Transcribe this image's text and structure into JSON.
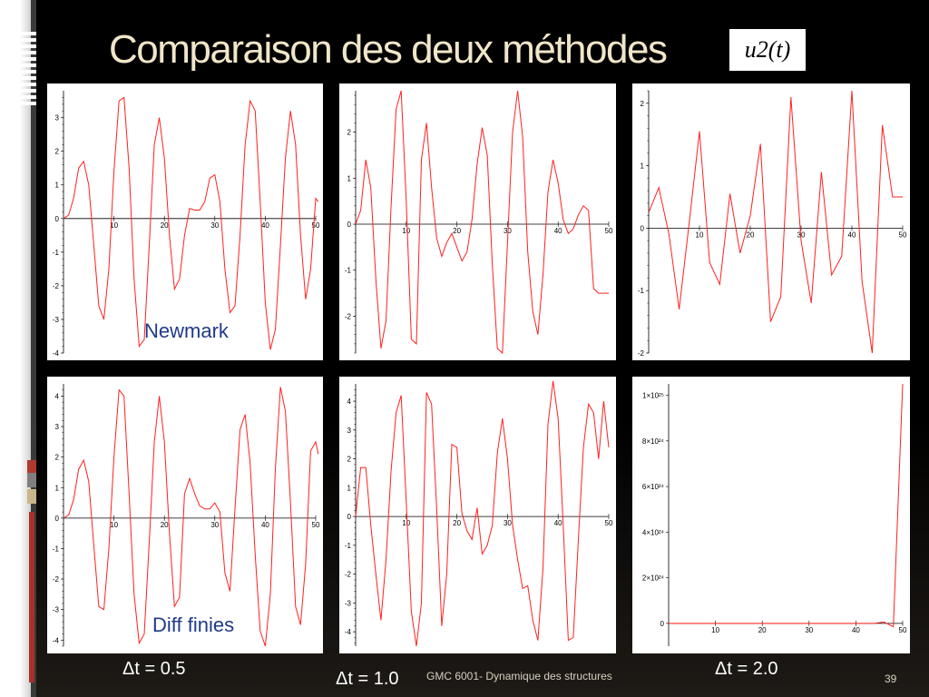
{
  "slide": {
    "title": "Comparaison des  deux méthodes",
    "formula": "u2(t)",
    "footer": "GMC 6001-  Dynamique des structures",
    "page_number": "39",
    "labels": {
      "newmark": "Newmark",
      "diff": "Diff finies",
      "dt05": "Δt = 0.5",
      "dt10": "Δt = 1.0",
      "dt20": "Δt = 2.0"
    },
    "colors": {
      "signal": "#ff2020",
      "title": "#f0e6c8",
      "method_label": "#1f3a8a"
    }
  },
  "chart_data": [
    {
      "type": "line",
      "method": "Newmark",
      "dt": 0.5,
      "xlim": [
        0,
        50
      ],
      "ylim": [
        -4,
        3.8
      ],
      "xticks": [
        10,
        20,
        30,
        40,
        50
      ],
      "yticks": [
        -4,
        -3,
        -2,
        -1,
        0,
        1,
        2,
        3
      ],
      "x": [
        0,
        1,
        2,
        3,
        4,
        5,
        6,
        7,
        8,
        9,
        10,
        11,
        12,
        13,
        14,
        15,
        16,
        17,
        18,
        19,
        20,
        21,
        22,
        23,
        24,
        25,
        26,
        27,
        28,
        29,
        30,
        31,
        32,
        33,
        34,
        35,
        36,
        37,
        38,
        39,
        40,
        41,
        42,
        43,
        44,
        45,
        46,
        47,
        48,
        49,
        50,
        50.5
      ],
      "y": [
        0,
        0.1,
        0.6,
        1.5,
        1.7,
        1.0,
        -0.8,
        -2.6,
        -3.0,
        -1.5,
        1.4,
        3.5,
        3.6,
        1.5,
        -1.8,
        -3.8,
        -3.6,
        -0.8,
        2.2,
        3.0,
        1.8,
        -0.5,
        -2.1,
        -1.8,
        -0.5,
        0.3,
        0.25,
        0.25,
        0.5,
        1.2,
        1.3,
        0.5,
        -1.5,
        -2.8,
        -2.6,
        -0.5,
        2.2,
        3.5,
        3.2,
        0.5,
        -2.5,
        -3.9,
        -3.3,
        -0.8,
        1.8,
        3.2,
        2.2,
        -0.5,
        -2.4,
        -1.5,
        0.6,
        0.5
      ]
    },
    {
      "type": "line",
      "method": "Newmark",
      "dt": 1.0,
      "xlim": [
        0,
        50
      ],
      "ylim": [
        -2.8,
        2.9
      ],
      "xticks": [
        10,
        20,
        30,
        40,
        50
      ],
      "yticks": [
        -2,
        -1,
        0,
        1,
        2
      ],
      "x": [
        0,
        1,
        2,
        3,
        4,
        5,
        6,
        7,
        8,
        9,
        10,
        11,
        12,
        13,
        14,
        15,
        16,
        17,
        18,
        19,
        20,
        21,
        22,
        23,
        24,
        25,
        26,
        27,
        28,
        29,
        30,
        31,
        32,
        33,
        34,
        35,
        36,
        37,
        38,
        39,
        40,
        41,
        42,
        43,
        44,
        45,
        46,
        47,
        48,
        49,
        50
      ],
      "y": [
        0,
        0.3,
        1.4,
        0.8,
        -1.2,
        -2.7,
        -2.1,
        0.4,
        2.5,
        2.9,
        0.5,
        -2.5,
        -2.6,
        1.4,
        2.2,
        0.8,
        -0.3,
        -0.7,
        -0.4,
        -0.2,
        -0.5,
        -0.8,
        -0.6,
        0.1,
        1.3,
        2.1,
        1.5,
        -0.9,
        -2.7,
        -2.8,
        -0.4,
        2.0,
        2.9,
        1.9,
        -0.6,
        -1.9,
        -2.4,
        -1.1,
        0.7,
        1.4,
        0.9,
        0.1,
        -0.2,
        -0.1,
        0.2,
        0.4,
        0.3,
        -1.4,
        -1.5,
        -1.5,
        -1.5
      ]
    },
    {
      "type": "line",
      "method": "Newmark",
      "dt": 2.0,
      "xlim": [
        0,
        50
      ],
      "ylim": [
        -2,
        2.2
      ],
      "xticks": [
        10,
        20,
        30,
        40,
        50
      ],
      "yticks": [
        -2,
        -1,
        0,
        1,
        2
      ],
      "x": [
        0,
        2,
        4,
        6,
        8,
        10,
        12,
        14,
        16,
        18,
        20,
        22,
        24,
        26,
        28,
        30,
        32,
        34,
        36,
        38,
        40,
        42,
        44,
        46,
        48,
        50
      ],
      "y": [
        0.25,
        0.65,
        -0.1,
        -1.3,
        0.1,
        1.55,
        -0.55,
        -0.9,
        0.55,
        -0.4,
        0.2,
        1.35,
        -1.5,
        -1.1,
        2.1,
        -0.2,
        -1.2,
        0.9,
        -0.75,
        -0.45,
        2.2,
        -0.85,
        -2.0,
        1.65,
        0.5,
        0.5
      ]
    },
    {
      "type": "line",
      "method": "Diff finies",
      "dt": 0.5,
      "xlim": [
        0,
        50
      ],
      "ylim": [
        -4.2,
        4.4
      ],
      "xticks": [
        10,
        20,
        30,
        40,
        50
      ],
      "yticks": [
        -4,
        -3,
        -2,
        -1,
        0,
        1,
        2,
        3,
        4
      ],
      "x": [
        0,
        1,
        2,
        3,
        4,
        5,
        6,
        7,
        8,
        9,
        10,
        11,
        12,
        13,
        14,
        15,
        16,
        17,
        18,
        19,
        20,
        21,
        22,
        23,
        24,
        25,
        26,
        27,
        28,
        29,
        30,
        31,
        32,
        33,
        34,
        35,
        36,
        37,
        38,
        39,
        40,
        41,
        42,
        43,
        44,
        45,
        46,
        47,
        48,
        49,
        50,
        50.5
      ],
      "y": [
        0,
        0.1,
        0.6,
        1.6,
        1.9,
        1.2,
        -0.9,
        -2.9,
        -3.0,
        -1.0,
        2.0,
        4.2,
        4.0,
        0.8,
        -2.5,
        -4.1,
        -3.8,
        -0.8,
        2.5,
        4.0,
        2.5,
        -0.5,
        -2.9,
        -2.6,
        0.8,
        1.3,
        0.8,
        0.4,
        0.3,
        0.3,
        0.5,
        0.2,
        -1.8,
        -2.4,
        0.3,
        2.9,
        3.4,
        1.8,
        -1.2,
        -3.7,
        -4.2,
        -2.5,
        1.6,
        4.3,
        3.5,
        0.5,
        -2.9,
        -3.5,
        -1.5,
        2.2,
        2.5,
        2.1
      ]
    },
    {
      "type": "line",
      "method": "Diff finies",
      "dt": 1.0,
      "xlim": [
        0,
        50
      ],
      "ylim": [
        -4.5,
        4.6
      ],
      "xticks": [
        10,
        20,
        30,
        40,
        50
      ],
      "yticks": [
        -4,
        -3,
        -2,
        -1,
        0,
        1,
        2,
        3,
        4
      ],
      "x": [
        0,
        1,
        2,
        3,
        4,
        5,
        6,
        7,
        8,
        9,
        10,
        11,
        12,
        13,
        14,
        15,
        16,
        17,
        18,
        19,
        20,
        21,
        22,
        23,
        24,
        25,
        26,
        27,
        28,
        29,
        30,
        31,
        32,
        33,
        34,
        35,
        36,
        37,
        38,
        39,
        40,
        41,
        42,
        43,
        44,
        45,
        46,
        47,
        48,
        49,
        50
      ],
      "y": [
        0,
        1.7,
        1.7,
        -0.3,
        -2.0,
        -3.6,
        -1.5,
        1.6,
        3.6,
        4.2,
        0.5,
        -3.3,
        -4.5,
        -3.0,
        4.3,
        3.9,
        0.3,
        -3.8,
        -2.0,
        2.5,
        2.4,
        0.1,
        -0.5,
        -0.8,
        0.3,
        -1.3,
        -1.0,
        -0.3,
        2.2,
        3.4,
        2.0,
        -0.3,
        -1.5,
        -2.5,
        -2.4,
        -3.6,
        -4.3,
        -1.8,
        3.2,
        4.7,
        3.4,
        -0.3,
        -4.3,
        -4.2,
        -0.8,
        2.4,
        3.9,
        3.6,
        2.0,
        4.0,
        2.4
      ]
    },
    {
      "type": "line",
      "method": "Diff finies",
      "dt": 2.0,
      "xlim": [
        0,
        50
      ],
      "ylim": [
        -1e+24,
        1.05e+25
      ],
      "xticks": [
        10,
        20,
        30,
        40,
        50
      ],
      "yticks": [
        0,
        2e+24,
        4e+24,
        6e+24,
        8e+24,
        1e+25
      ],
      "ytick_labels": [
        "0",
        "2×10²⁴",
        "4×10²⁴",
        "6×10²⁴",
        "8×10²⁴",
        "1×10²⁵"
      ],
      "x": [
        0,
        2,
        4,
        6,
        8,
        10,
        12,
        14,
        16,
        18,
        20,
        22,
        24,
        26,
        28,
        30,
        32,
        34,
        36,
        38,
        40,
        42,
        44,
        46,
        48,
        50
      ],
      "y": [
        0,
        0,
        0,
        0,
        0,
        0,
        0,
        0,
        0,
        0,
        0,
        0,
        0,
        0,
        0,
        0,
        0,
        0,
        0,
        0,
        0,
        0,
        0,
        6e+22,
        -1.5e+23,
        1.05e+25
      ]
    }
  ]
}
